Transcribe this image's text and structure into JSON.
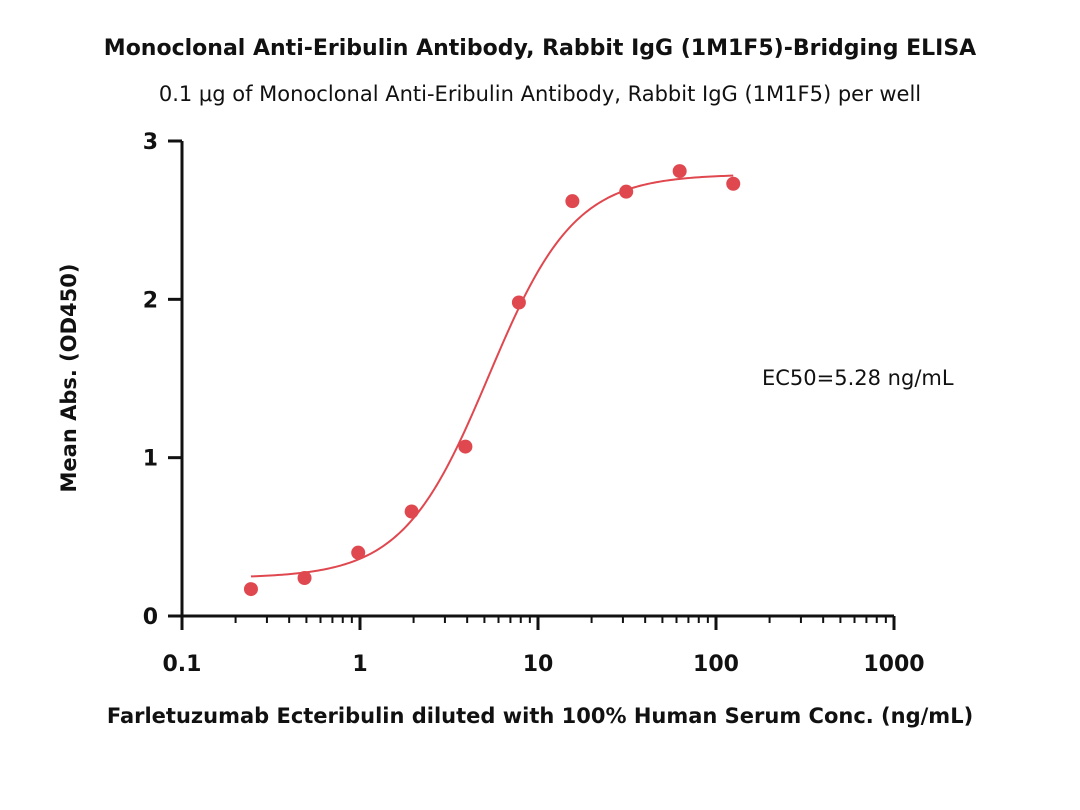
{
  "chart_data": {
    "type": "scatter",
    "title": "Monoclonal Anti-Eribulin Antibody, Rabbit IgG (1M1F5)-Bridging ELISA",
    "subtitle": "0.1 μg of Monoclonal Anti-Eribulin Antibody, Rabbit IgG (1M1F5) per well",
    "xlabel": "Farletuzumab Ecteribulin diluted with 100% Human Serum Conc. (ng/mL)",
    "ylabel": "Mean Abs. (OD450)",
    "x_scale": "log",
    "xlim": [
      0.1,
      1000
    ],
    "ylim": [
      0,
      3
    ],
    "x_ticks": [
      "0.1",
      "1",
      "10",
      "100",
      "1000"
    ],
    "x_tick_values": [
      0.1,
      1,
      10,
      100,
      1000
    ],
    "y_ticks": [
      "0",
      "1",
      "2",
      "3"
    ],
    "y_tick_values": [
      0,
      1,
      2,
      3
    ],
    "grid": false,
    "color": "#e0484f",
    "series": [
      {
        "x": [
          0.244,
          0.488,
          0.977,
          1.95,
          3.91,
          7.81,
          15.6,
          31.3,
          62.5,
          125
        ],
        "y": [
          0.17,
          0.24,
          0.4,
          0.66,
          1.07,
          1.98,
          2.62,
          2.68,
          2.81,
          2.73
        ]
      }
    ],
    "fit": {
      "type": "4PL",
      "bottom": 0.24,
      "top": 2.79,
      "ec50": 5.28,
      "hill": 1.8,
      "x_range": [
        0.244,
        125
      ]
    },
    "annotations": [
      {
        "text": "EC50=5.28 ng/mL"
      }
    ]
  }
}
